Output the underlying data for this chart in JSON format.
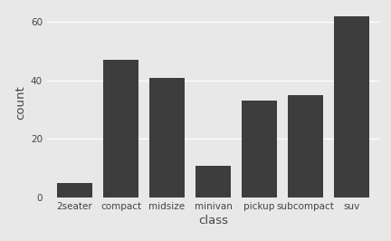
{
  "categories": [
    "2seater",
    "compact",
    "midsize",
    "minivan",
    "pickup",
    "subcompact",
    "suv"
  ],
  "values": [
    5,
    47,
    41,
    11,
    33,
    35,
    62
  ],
  "bar_color": "#3d3d3d",
  "figure_background": "#e8e8e8",
  "panel_background": "#e8e8e8",
  "grid_color": "#ffffff",
  "xlabel": "class",
  "ylabel": "count",
  "ylim": [
    0,
    65
  ],
  "yticks": [
    0,
    20,
    40,
    60
  ],
  "bar_width": 0.75,
  "tick_fontsize": 7.5,
  "label_fontsize": 9.5,
  "axis_text_color": "#444444"
}
